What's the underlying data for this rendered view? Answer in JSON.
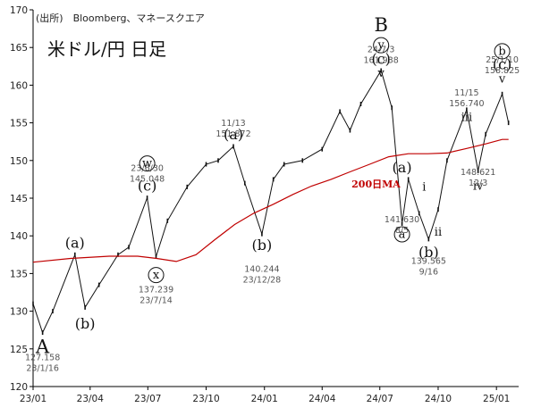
{
  "chart_data": {
    "type": "line",
    "title": "米ドル/円 日足",
    "source_note": "(出所)　Bloomberg、マネースクエア",
    "ylim": [
      120,
      170
    ],
    "yticks": [
      "120",
      "125",
      "130",
      "135",
      "140",
      "145",
      "150",
      "155",
      "160",
      "165",
      "170"
    ],
    "xticks": [
      "23/01",
      "23/04",
      "23/07",
      "23/10",
      "24/01",
      "24/04",
      "24/07",
      "24/10",
      "25/01"
    ],
    "grid": false,
    "series": [
      {
        "kind": "close",
        "x": [
          "23/01/01",
          "23/01/16",
          "23/02/01",
          "23/03/08",
          "23/03/24",
          "23/04/15",
          "23/05/15",
          "23/06/01",
          "23/06/30",
          "23/07/14",
          "23/08/01",
          "23/09/01",
          "23/10/01",
          "23/10/20",
          "23/11/13",
          "23/12/01",
          "23/12/28",
          "24/01/15",
          "24/02/01",
          "24/03/01",
          "24/04/01",
          "24/04/29",
          "24/05/15",
          "24/06/01",
          "24/07/03",
          "24/07/20",
          "24/08/05",
          "24/08/15",
          "24/09/01",
          "24/09/16",
          "24/10/01",
          "24/10/15",
          "24/11/15",
          "24/12/03",
          "24/12/15",
          "25/01/10",
          "25/01/20"
        ],
        "values": [
          131.0,
          127.158,
          130.0,
          137.5,
          130.5,
          133.5,
          137.5,
          138.5,
          145.048,
          137.239,
          142.0,
          146.5,
          149.5,
          150.0,
          151.872,
          147.0,
          140.244,
          147.5,
          149.5,
          150.0,
          151.5,
          156.5,
          154.0,
          157.5,
          161.938,
          157.0,
          141.63,
          147.5,
          143.0,
          139.565,
          143.5,
          150.0,
          156.74,
          148.621,
          153.5,
          158.825,
          155.0
        ]
      },
      {
        "name": "200日MA",
        "x": [
          "23/01/01",
          "23/03/01",
          "23/05/01",
          "23/06/15",
          "23/07/15",
          "23/08/15",
          "23/09/15",
          "23/10/15",
          "23/11/15",
          "23/12/15",
          "24/01/15",
          "24/02/15",
          "24/03/15",
          "24/04/15",
          "24/05/15",
          "24/06/15",
          "24/07/15",
          "24/08/15",
          "24/09/15",
          "24/10/15",
          "24/11/15",
          "24/12/15",
          "25/01/10",
          "25/01/20"
        ],
        "values": [
          136.5,
          137.0,
          137.3,
          137.3,
          137.0,
          136.6,
          137.5,
          139.5,
          141.5,
          143.0,
          144.2,
          145.5,
          146.6,
          147.5,
          148.5,
          149.5,
          150.5,
          150.9,
          150.9,
          151.0,
          151.6,
          152.2,
          152.8,
          152.8
        ]
      }
    ],
    "annotations": {
      "wave_labels": [
        {
          "text": "A",
          "x": "23/01/16",
          "y": 125.3
        },
        {
          "text": "(a)",
          "x": "23/03/08",
          "y": 139.0
        },
        {
          "text": "(b)",
          "x": "23/03/24",
          "y": 128.3
        },
        {
          "text": "w",
          "x": "23/06/30",
          "y": 149.6
        },
        {
          "text": "(c)",
          "x": "23/06/30",
          "y": 146.6
        },
        {
          "text": "x",
          "x": "23/07/14",
          "y": 134.8
        },
        {
          "text": "(a)",
          "x": "23/11/13",
          "y": 153.4
        },
        {
          "text": "(b)",
          "x": "23/12/28",
          "y": 138.7
        },
        {
          "text": "B",
          "x": "24/07/03",
          "y": 168.0
        },
        {
          "text": "y",
          "x": "24/07/03",
          "y": 165.3
        },
        {
          "text": "(c)",
          "x": "24/07/03",
          "y": 163.4
        },
        {
          "text": "v",
          "x": "24/07/03",
          "y": 161.6
        },
        {
          "text": "a",
          "x": "24/08/05",
          "y": 140.2
        },
        {
          "text": "(a)",
          "x": "24/08/05",
          "y": 149.0
        },
        {
          "text": "(b)",
          "x": "24/09/16",
          "y": 137.8
        },
        {
          "text": "i",
          "x": "24/09/09",
          "y": 146.5
        },
        {
          "text": "ii",
          "x": "24/10/01",
          "y": 140.5
        },
        {
          "text": "iii",
          "x": "24/11/15",
          "y": 155.7
        },
        {
          "text": "iv",
          "x": "24/12/03",
          "y": 146.6
        },
        {
          "text": "b",
          "x": "25/01/10",
          "y": 164.5
        },
        {
          "text": "(c)",
          "x": "25/01/10",
          "y": 162.7
        },
        {
          "text": "v",
          "x": "25/01/10",
          "y": 160.8
        }
      ],
      "price_notes": [
        {
          "lines": [
            "127.158",
            "23/1/16"
          ],
          "x": "23/01/16",
          "y": 123.5
        },
        {
          "lines": [
            "23/6/30",
            "145.048"
          ],
          "x": "23/06/30",
          "y": 148.6
        },
        {
          "lines": [
            "137.239",
            "23/7/14"
          ],
          "x": "23/07/14",
          "y": 132.5
        },
        {
          "lines": [
            "11/13",
            "151.872"
          ],
          "x": "23/11/13",
          "y": 154.6
        },
        {
          "lines": [
            "140.244",
            "23/12/28"
          ],
          "x": "23/12/28",
          "y": 135.2
        },
        {
          "lines": [
            "24/7/3",
            "161.938"
          ],
          "x": "24/07/03",
          "y": 164.4
        },
        {
          "lines": [
            "141.630",
            "8/5"
          ],
          "x": "24/08/05",
          "y": 141.8
        },
        {
          "lines": [
            "139.565",
            "9/16"
          ],
          "x": "24/09/16",
          "y": 136.3
        },
        {
          "lines": [
            "11/15",
            "156.740"
          ],
          "x": "24/11/15",
          "y": 158.6
        },
        {
          "lines": [
            "148.621",
            "12/3"
          ],
          "x": "24/12/03",
          "y": 148.1
        },
        {
          "lines": [
            "25/1/10",
            "158.825"
          ],
          "x": "25/01/10",
          "y": 163.0
        }
      ],
      "ma_label": {
        "text": "200日MA",
        "x": "24/06/25",
        "y": 146.4
      }
    },
    "colors": {
      "price": "#111111",
      "ma": "#c00000",
      "axis": "#000000"
    }
  }
}
